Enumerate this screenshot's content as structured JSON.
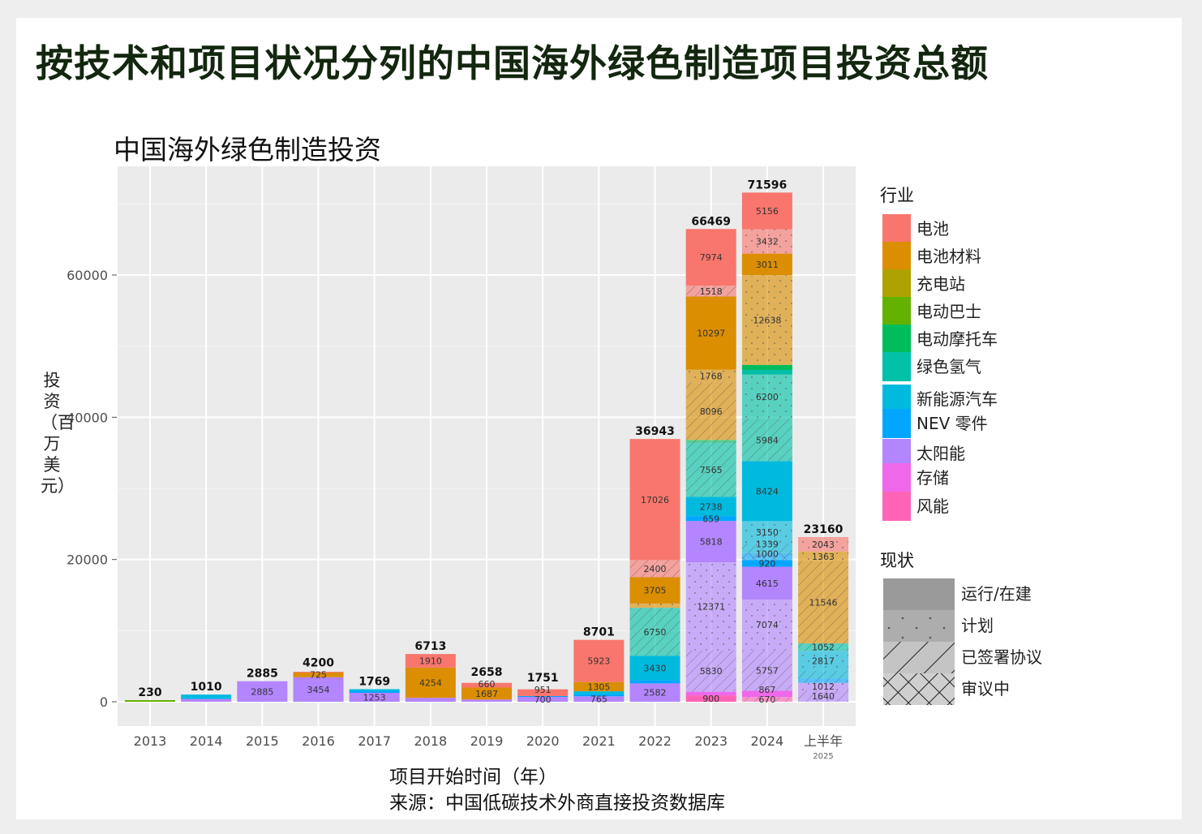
{
  "title": "按技术和项目状况分列的中国海外绿色制造项目投资总额",
  "chart_data": {
    "type": "bar",
    "stacked": true,
    "title": "中国海外绿色制造投资",
    "xlabel": "项目开始时间（年）",
    "ylabel": "投资（百万美元）",
    "source": "来源：中国低碳技术外商直接投资数据库",
    "ylim": [
      0,
      75000
    ],
    "yticks": [
      0,
      20000,
      40000,
      60000
    ],
    "grid": true,
    "legend_position": "right",
    "categories": [
      "2013",
      "2014",
      "2015",
      "2016",
      "2017",
      "2018",
      "2019",
      "2020",
      "2021",
      "2022",
      "2023",
      "2024",
      "上半年"
    ],
    "category_sublabels": {
      "上半年": "2025"
    },
    "totals": [
      230,
      1010,
      2885,
      4200,
      1769,
      6713,
      2658,
      1751,
      8701,
      36943,
      66469,
      71596,
      23160
    ],
    "industry_legend_title": "行业",
    "industries": [
      {
        "name": "电池",
        "color": "#F8766D"
      },
      {
        "name": "电池材料",
        "color": "#DB8E00"
      },
      {
        "name": "充电站",
        "color": "#AEA200"
      },
      {
        "name": "电动巴士",
        "color": "#64B200"
      },
      {
        "name": "电动摩托车",
        "color": "#00BD5C"
      },
      {
        "name": "绿色氢气",
        "color": "#00C1A7"
      },
      {
        "name": "新能源汽车",
        "color": "#00BADE"
      },
      {
        "name": "NEV 零件",
        "color": "#00A6FF"
      },
      {
        "name": "太阳能",
        "color": "#B385FF"
      },
      {
        "name": "存储",
        "color": "#EF67EB"
      },
      {
        "name": "风能",
        "color": "#FF63B6"
      }
    ],
    "status_legend_title": "现状",
    "statuses": [
      {
        "name": "运行/在建",
        "pattern": "none"
      },
      {
        "name": "计划",
        "pattern": "dots"
      },
      {
        "name": "已签署协议",
        "pattern": "diagonal"
      },
      {
        "name": "审议中",
        "pattern": "crosshatch"
      }
    ],
    "segments_note_order": "industry, status, value, labeled",
    "segments": [
      [
        [
          "电动巴士",
          "运行/在建",
          230,
          false
        ]
      ],
      [
        [
          "太阳能",
          "运行/在建",
          400,
          false
        ],
        [
          "新能源汽车",
          "运行/在建",
          610,
          false
        ]
      ],
      [
        [
          "太阳能",
          "运行/在建",
          2885,
          true
        ]
      ],
      [
        [
          "太阳能",
          "运行/在建",
          3454,
          true
        ],
        [
          "电池材料",
          "运行/在建",
          725,
          true
        ],
        [
          "电池",
          "运行/在建",
          21,
          false
        ]
      ],
      [
        [
          "太阳能",
          "运行/在建",
          1253,
          true
        ],
        [
          "NEV 零件",
          "运行/在建",
          300,
          false
        ],
        [
          "新能源汽车",
          "运行/在建",
          216,
          false
        ]
      ],
      [
        [
          "太阳能",
          "运行/在建",
          549,
          false
        ],
        [
          "电池材料",
          "运行/在建",
          4254,
          true
        ],
        [
          "电池",
          "运行/在建",
          1910,
          true
        ]
      ],
      [
        [
          "太阳能",
          "运行/在建",
          311,
          false
        ],
        [
          "电池材料",
          "运行/在建",
          1687,
          true
        ],
        [
          "电池",
          "运行/在建",
          660,
          true
        ]
      ],
      [
        [
          "太阳能",
          "运行/在建",
          700,
          true
        ],
        [
          "NEV 零件",
          "运行/在建",
          100,
          false
        ],
        [
          "电池",
          "运行/在建",
          951,
          true
        ]
      ],
      [
        [
          "太阳能",
          "运行/在建",
          765,
          true
        ],
        [
          "NEV 零件",
          "运行/在建",
          308,
          false
        ],
        [
          "新能源汽车",
          "运行/在建",
          400,
          false
        ],
        [
          "电池材料",
          "运行/在建",
          1305,
          true
        ],
        [
          "电池",
          "运行/在建",
          5923,
          true
        ]
      ],
      [
        [
          "太阳能",
          "运行/在建",
          2582,
          true
        ],
        [
          "NEV 零件",
          "运行/在建",
          450,
          false
        ],
        [
          "新能源汽车",
          "运行/在建",
          3430,
          true
        ],
        [
          "绿色氢气",
          "已签署协议",
          6750,
          true
        ],
        [
          "电池材料",
          "计划",
          600,
          false
        ],
        [
          "电池材料",
          "运行/在建",
          3705,
          true
        ],
        [
          "电池",
          "已签署协议",
          2400,
          true
        ],
        [
          "电池",
          "运行/在建",
          17026,
          true
        ]
      ],
      [
        [
          "风能",
          "运行/在建",
          900,
          true
        ],
        [
          "存储",
          "运行/在建",
          500,
          false
        ],
        [
          "太阳能",
          "已签署协议",
          5830,
          true
        ],
        [
          "太阳能",
          "计划",
          12371,
          true
        ],
        [
          "太阳能",
          "运行/在建",
          5818,
          true
        ],
        [
          "NEV 零件",
          "运行/在建",
          659,
          true
        ],
        [
          "新能源汽车",
          "运行/在建",
          2738,
          true
        ],
        [
          "绿色氢气",
          "已签署协议",
          7565,
          true
        ],
        [
          "电动摩托车",
          "已签署协议",
          435,
          false
        ],
        [
          "电池材料",
          "已签署协议",
          8096,
          true
        ],
        [
          "电池材料",
          "计划",
          1768,
          true
        ],
        [
          "电池材料",
          "运行/在建",
          10297,
          true
        ],
        [
          "电池",
          "已签署协议",
          1518,
          true
        ],
        [
          "电池",
          "运行/在建",
          7974,
          true
        ]
      ],
      [
        [
          "风能",
          "已签署协议",
          670,
          true
        ],
        [
          "存储",
          "运行/在建",
          867,
          true
        ],
        [
          "太阳能",
          "已签署协议",
          5757,
          true
        ],
        [
          "太阳能",
          "计划",
          7074,
          true
        ],
        [
          "太阳能",
          "运行/在建",
          4615,
          true
        ],
        [
          "NEV 零件",
          "运行/在建",
          920,
          true
        ],
        [
          "NEV 零件",
          "审议中",
          1000,
          true
        ],
        [
          "新能源汽车",
          "已签署协议",
          1339,
          true
        ],
        [
          "新能源汽车",
          "计划",
          3150,
          true
        ],
        [
          "新能源汽车",
          "运行/在建",
          8424,
          true
        ],
        [
          "绿色氢气",
          "已签署协议",
          5984,
          true
        ],
        [
          "绿色氢气",
          "计划",
          6200,
          true
        ],
        [
          "绿色氢气",
          "运行/在建",
          659,
          false
        ],
        [
          "电动摩托车",
          "运行/在建",
          700,
          false
        ],
        [
          "电池材料",
          "计划",
          12638,
          true
        ],
        [
          "电池材料",
          "运行/在建",
          3011,
          true
        ],
        [
          "电池",
          "计划",
          3432,
          true
        ],
        [
          "电池",
          "运行/在建",
          5156,
          true
        ]
      ],
      [
        [
          "太阳能",
          "已签署协议",
          1640,
          true
        ],
        [
          "太阳能",
          "计划",
          1012,
          true
        ],
        [
          "NEV 零件",
          "已签署协议",
          600,
          false
        ],
        [
          "新能源汽车",
          "已签署协议",
          1087,
          false
        ],
        [
          "新能源汽车",
          "计划",
          2817,
          true
        ],
        [
          "绿色氢气",
          "已签署协议",
          1052,
          true
        ],
        [
          "电池材料",
          "已签署协议",
          11546,
          true
        ],
        [
          "电池材料",
          "计划",
          1363,
          true
        ],
        [
          "电池",
          "计划",
          2043,
          true
        ]
      ]
    ]
  }
}
